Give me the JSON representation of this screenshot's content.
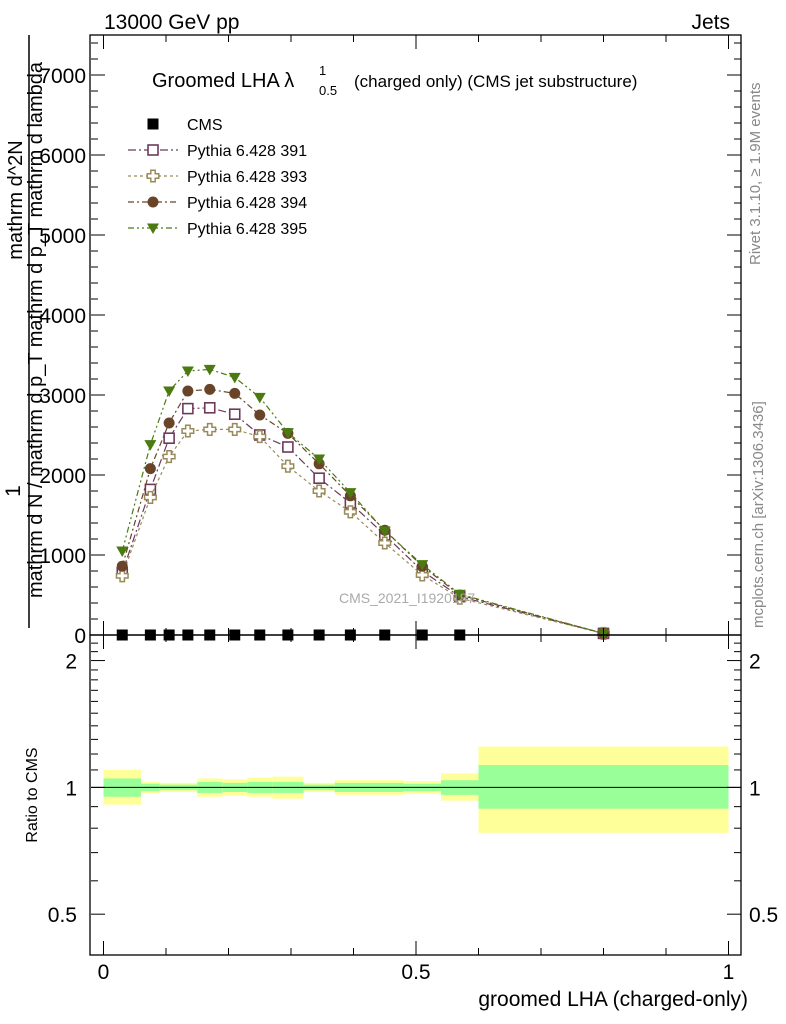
{
  "header": {
    "left": "13000 GeV pp",
    "right": "Jets"
  },
  "side": {
    "rivet": "Rivet 3.1.10, ≥ 1.9M events",
    "mcplots": "mcplots.cern.ch [arXiv:1306.3436]"
  },
  "title": {
    "main": "Groomed LHA λ",
    "sup": "1",
    "sub": "0.5",
    "rest": "(charged only) (CMS jet substructure)"
  },
  "watermark": "CMS_2021_I1920187",
  "colors": {
    "s391": "#6e3a5a",
    "s393": "#9a8a5a",
    "s394": "#6a4428",
    "s395": "#4a7a10",
    "band_inner": "#99ff99",
    "band_outer": "#ffff99"
  },
  "chart_data": [
    {
      "type": "scatter",
      "panel": "main",
      "ylabel_frac_num": "1",
      "ylabel_frac_den": "mathrm d N / mathrm d p_T mathrm d p_T mathrm d lambda",
      "ylabel_frac_top": "mathrm d^2N",
      "ylim": [
        0,
        7500
      ],
      "xlim": [
        -0.02,
        1.02
      ],
      "yticks": [
        0,
        1000,
        2000,
        3000,
        4000,
        5000,
        6000,
        7000
      ],
      "ytick_labels": [
        "0",
        "1000",
        "2000",
        "3000",
        "4000",
        "5000",
        "6000",
        "7000"
      ],
      "legend_position": "top-left",
      "series": [
        {
          "name": "CMS",
          "marker": "square-filled",
          "x": [
            0.03,
            0.075,
            0.105,
            0.135,
            0.17,
            0.21,
            0.25,
            0.295,
            0.345,
            0.395,
            0.45,
            0.51,
            0.57
          ],
          "y": [
            0,
            0,
            0,
            0,
            0,
            0,
            0,
            0,
            0,
            0,
            0,
            0,
            0
          ]
        },
        {
          "name": "Pythia 6.428 391",
          "marker": "square-open",
          "x": [
            0.03,
            0.075,
            0.105,
            0.135,
            0.17,
            0.21,
            0.25,
            0.295,
            0.345,
            0.395,
            0.45,
            0.51,
            0.57,
            0.8
          ],
          "y": [
            780,
            1820,
            2460,
            2830,
            2840,
            2760,
            2500,
            2350,
            1960,
            1650,
            1250,
            800,
            480,
            20
          ]
        },
        {
          "name": "Pythia 6.428 393",
          "marker": "plus-open",
          "x": [
            0.03,
            0.075,
            0.105,
            0.135,
            0.17,
            0.21,
            0.25,
            0.295,
            0.345,
            0.395,
            0.45,
            0.51,
            0.57,
            0.8
          ],
          "y": [
            740,
            1720,
            2230,
            2550,
            2570,
            2570,
            2480,
            2110,
            1800,
            1540,
            1150,
            750,
            460,
            20
          ]
        },
        {
          "name": "Pythia 6.428 394",
          "marker": "circle-filled",
          "x": [
            0.03,
            0.075,
            0.105,
            0.135,
            0.17,
            0.21,
            0.25,
            0.295,
            0.345,
            0.395,
            0.45,
            0.51,
            0.57,
            0.8
          ],
          "y": [
            860,
            2080,
            2650,
            3050,
            3070,
            3020,
            2750,
            2520,
            2140,
            1740,
            1310,
            860,
            500,
            20
          ]
        },
        {
          "name": "Pythia 6.428 395",
          "marker": "triangle-down-filled",
          "x": [
            0.03,
            0.075,
            0.105,
            0.135,
            0.17,
            0.21,
            0.25,
            0.295,
            0.345,
            0.395,
            0.45,
            0.51,
            0.57,
            0.8
          ],
          "y": [
            1050,
            2380,
            3050,
            3300,
            3320,
            3220,
            2970,
            2530,
            2200,
            1780,
            1300,
            880,
            510,
            20
          ]
        }
      ]
    },
    {
      "type": "area",
      "panel": "ratio",
      "ylabel": "Ratio to CMS",
      "xlabel": "groomed LHA (charged-only)",
      "ylim": [
        0.4,
        2.3
      ],
      "xlim": [
        -0.02,
        1.02
      ],
      "log_y": true,
      "yticks": [
        0.5,
        1,
        2
      ],
      "ytick_labels": [
        "0.5",
        "1",
        "2"
      ],
      "xticks": [
        0,
        0.5,
        1
      ],
      "xtick_labels": [
        "0",
        "0.5",
        "1"
      ],
      "bins": [
        {
          "xlo": 0.0,
          "xhi": 0.06,
          "inner": [
            0.95,
            1.05
          ],
          "outer": [
            0.91,
            1.1
          ]
        },
        {
          "xlo": 0.06,
          "xhi": 0.09,
          "inner": [
            0.98,
            1.02
          ],
          "outer": [
            0.97,
            1.03
          ]
        },
        {
          "xlo": 0.09,
          "xhi": 0.12,
          "inner": [
            0.985,
            1.015
          ],
          "outer": [
            0.975,
            1.025
          ]
        },
        {
          "xlo": 0.12,
          "xhi": 0.15,
          "inner": [
            0.985,
            1.015
          ],
          "outer": [
            0.975,
            1.025
          ]
        },
        {
          "xlo": 0.15,
          "xhi": 0.19,
          "inner": [
            0.97,
            1.03
          ],
          "outer": [
            0.95,
            1.05
          ]
        },
        {
          "xlo": 0.19,
          "xhi": 0.23,
          "inner": [
            0.975,
            1.025
          ],
          "outer": [
            0.955,
            1.045
          ]
        },
        {
          "xlo": 0.23,
          "xhi": 0.27,
          "inner": [
            0.97,
            1.03
          ],
          "outer": [
            0.95,
            1.055
          ]
        },
        {
          "xlo": 0.27,
          "xhi": 0.32,
          "inner": [
            0.97,
            1.03
          ],
          "outer": [
            0.94,
            1.06
          ]
        },
        {
          "xlo": 0.32,
          "xhi": 0.37,
          "inner": [
            0.985,
            1.015
          ],
          "outer": [
            0.975,
            1.025
          ]
        },
        {
          "xlo": 0.37,
          "xhi": 0.42,
          "inner": [
            0.975,
            1.025
          ],
          "outer": [
            0.96,
            1.04
          ]
        },
        {
          "xlo": 0.42,
          "xhi": 0.48,
          "inner": [
            0.975,
            1.025
          ],
          "outer": [
            0.96,
            1.04
          ]
        },
        {
          "xlo": 0.48,
          "xhi": 0.54,
          "inner": [
            0.98,
            1.02
          ],
          "outer": [
            0.965,
            1.035
          ]
        },
        {
          "xlo": 0.54,
          "xhi": 0.6,
          "inner": [
            0.96,
            1.04
          ],
          "outer": [
            0.93,
            1.08
          ]
        },
        {
          "xlo": 0.6,
          "xhi": 1.0,
          "inner": [
            0.89,
            1.13
          ],
          "outer": [
            0.78,
            1.25
          ]
        }
      ],
      "reference_line": 1
    }
  ]
}
